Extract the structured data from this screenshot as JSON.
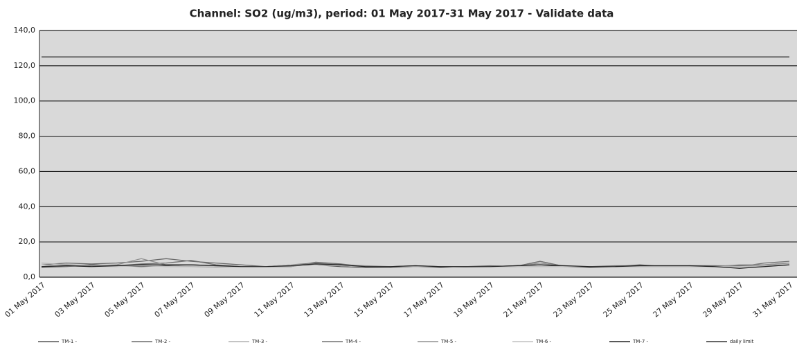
{
  "chart_data": {
    "type": "line",
    "title": "Channel: SO2 (ug/m3), period: 01 May 2017-31 May 2017  - Validate data",
    "categories": [
      "01 May 2017",
      null,
      "03 May 2017",
      null,
      "05 May 2017",
      null,
      "07 May 2017",
      null,
      "09 May 2017",
      null,
      "11 May 2017",
      null,
      "13 May 2017",
      null,
      "15 May 2017",
      null,
      "17 May 2017",
      null,
      "19 May 2017",
      null,
      "21 May 2017",
      null,
      "23 May 2017",
      null,
      "25 May 2017",
      null,
      "27 May 2017",
      null,
      "29 May 2017",
      null,
      "31 May 2017"
    ],
    "series": [
      {
        "name": "TM-1 -",
        "color": "#555555",
        "values": [
          6,
          6.5,
          7,
          6.5,
          6,
          6.5,
          7,
          6.5,
          6,
          6,
          6.5,
          7,
          6,
          5.5,
          5.5,
          6,
          5.5,
          6,
          6,
          6.5,
          7,
          6,
          5.5,
          6,
          6.5,
          6,
          6,
          6,
          6,
          6.5,
          7
        ]
      },
      {
        "name": "TM-2 -",
        "color": "#6a6a6a",
        "values": [
          7,
          8,
          7.5,
          8,
          9,
          10.5,
          9,
          8,
          7,
          6,
          6,
          8.5,
          7.5,
          6,
          5.5,
          6,
          6,
          6,
          6,
          6,
          9,
          6,
          6,
          6,
          7,
          6,
          6.5,
          6.5,
          6.5,
          7,
          8
        ]
      },
      {
        "name": "TM-3 -",
        "color": "#b0b0b0",
        "values": [
          8,
          7,
          6.5,
          6,
          7,
          6,
          6,
          5.5,
          6,
          6,
          6.5,
          7,
          6.5,
          6,
          6,
          6,
          6,
          5.5,
          6,
          6,
          6,
          6,
          6,
          6,
          6,
          6,
          6,
          6,
          6,
          6,
          7
        ]
      },
      {
        "name": "TM-4 -",
        "color": "#707070",
        "values": [
          5.5,
          6,
          7,
          6.5,
          7.5,
          8,
          9.5,
          7,
          6,
          6,
          7,
          8,
          7,
          6,
          6,
          6.5,
          6,
          6,
          6.5,
          6,
          9,
          6,
          6,
          6.5,
          6.5,
          6.5,
          6.5,
          6.5,
          6,
          8,
          9
        ]
      },
      {
        "name": "TM-5 -",
        "color": "#909090",
        "values": [
          6,
          7,
          6.5,
          7,
          10.5,
          7,
          7,
          6,
          6,
          6,
          6,
          8,
          7,
          6.5,
          6,
          6,
          6,
          6,
          6,
          6,
          8,
          6,
          6,
          6,
          6,
          6,
          6,
          6,
          7,
          7,
          8
        ]
      },
      {
        "name": "TM-6 -",
        "color": "#c0c0c0",
        "values": [
          7,
          6.5,
          6,
          6,
          6.5,
          6,
          6.5,
          6,
          6,
          6,
          7,
          7,
          6.5,
          6,
          6,
          6,
          6,
          6,
          6,
          6,
          6,
          6,
          6,
          6,
          6,
          6,
          6,
          6,
          6,
          6.5,
          7
        ]
      },
      {
        "name": "TM-7 -",
        "color": "#222222",
        "values": [
          6,
          6.5,
          6,
          6.5,
          7,
          7,
          7,
          6.5,
          6,
          6,
          6.5,
          7.5,
          7,
          6,
          6,
          6.5,
          6,
          6,
          6,
          6.5,
          7,
          6.5,
          6,
          6,
          6.5,
          6.5,
          6.5,
          6,
          5,
          6,
          7
        ]
      },
      {
        "name": "daily limit",
        "color": "#333333",
        "values": [
          125,
          125,
          125,
          125,
          125,
          125,
          125,
          125,
          125,
          125,
          125,
          125,
          125,
          125,
          125,
          125,
          125,
          125,
          125,
          125,
          125,
          125,
          125,
          125,
          125,
          125,
          125,
          125,
          125,
          125,
          125
        ]
      }
    ],
    "ylim": [
      0,
      140
    ],
    "yticks": [
      {
        "value": 0,
        "label": "0,0"
      },
      {
        "value": 20,
        "label": "20,0"
      },
      {
        "value": 40,
        "label": "40,0"
      },
      {
        "value": 60,
        "label": "60,0"
      },
      {
        "value": 80,
        "label": "80,0"
      },
      {
        "value": 100,
        "label": "100,0"
      },
      {
        "value": 120,
        "label": "120,0"
      },
      {
        "value": 140,
        "label": "140,0"
      }
    ],
    "grid": true
  }
}
